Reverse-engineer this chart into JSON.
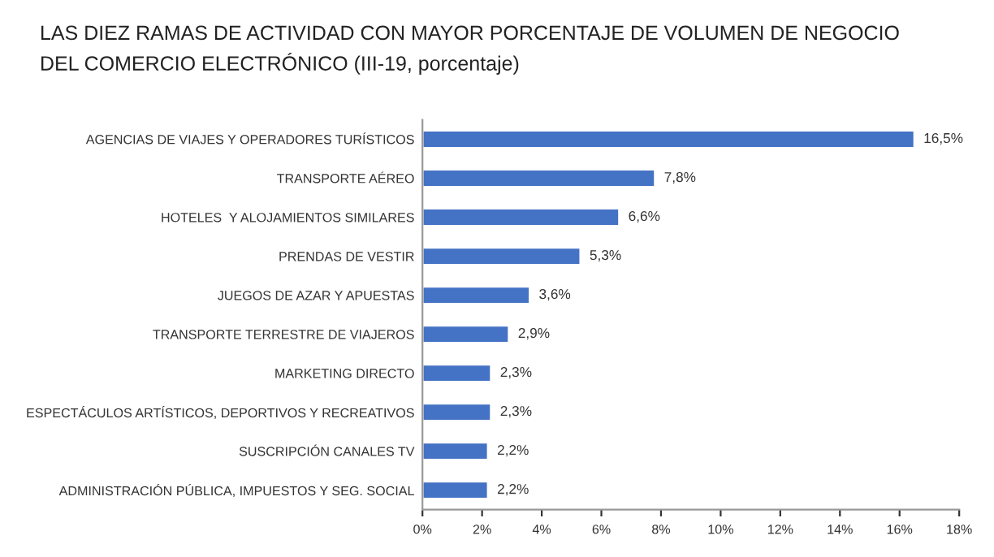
{
  "chart_data": {
    "type": "bar",
    "orientation": "horizontal",
    "title": "LAS DIEZ RAMAS DE ACTIVIDAD CON MAYOR PORCENTAJE DE VOLUMEN DE NEGOCIO\nDEL COMERCIO ELECTRÓNICO (III-19, porcentaje)",
    "categories": [
      "AGENCIAS DE VIAJES Y OPERADORES TURÍSTICOS",
      "TRANSPORTE AÉREO",
      "HOTELES  Y ALOJAMIENTOS SIMILARES",
      "PRENDAS DE VESTIR",
      "JUEGOS DE AZAR Y APUESTAS",
      "TRANSPORTE TERRESTRE DE VIAJEROS",
      "MARKETING DIRECTO",
      "ESPECTÁCULOS ARTÍSTICOS, DEPORTIVOS Y RECREATIVOS",
      "SUSCRIPCIÓN CANALES TV",
      "ADMINISTRACIÓN PÚBLICA, IMPUESTOS Y SEG. SOCIAL"
    ],
    "values": [
      16.5,
      7.8,
      6.6,
      5.3,
      3.6,
      2.9,
      2.3,
      2.3,
      2.2,
      2.2
    ],
    "value_labels": [
      "16,5%",
      "7,8%",
      "6,6%",
      "5,3%",
      "3,6%",
      "2,9%",
      "2,3%",
      "2,3%",
      "2,2%",
      "2,2%"
    ],
    "color": "#4472c4",
    "xlim": [
      0,
      18
    ],
    "xticks": [
      {
        "value": 0,
        "label": "0%"
      },
      {
        "value": 2,
        "label": "2%"
      },
      {
        "value": 4,
        "label": "4%"
      },
      {
        "value": 6,
        "label": "6%"
      },
      {
        "value": 8,
        "label": "8%"
      },
      {
        "value": 10,
        "label": "10%"
      },
      {
        "value": 12,
        "label": "12%"
      },
      {
        "value": 14,
        "label": "14%"
      },
      {
        "value": 16,
        "label": "16%"
      },
      {
        "value": 18,
        "label": "18%"
      }
    ],
    "grid": false,
    "legend": false
  }
}
